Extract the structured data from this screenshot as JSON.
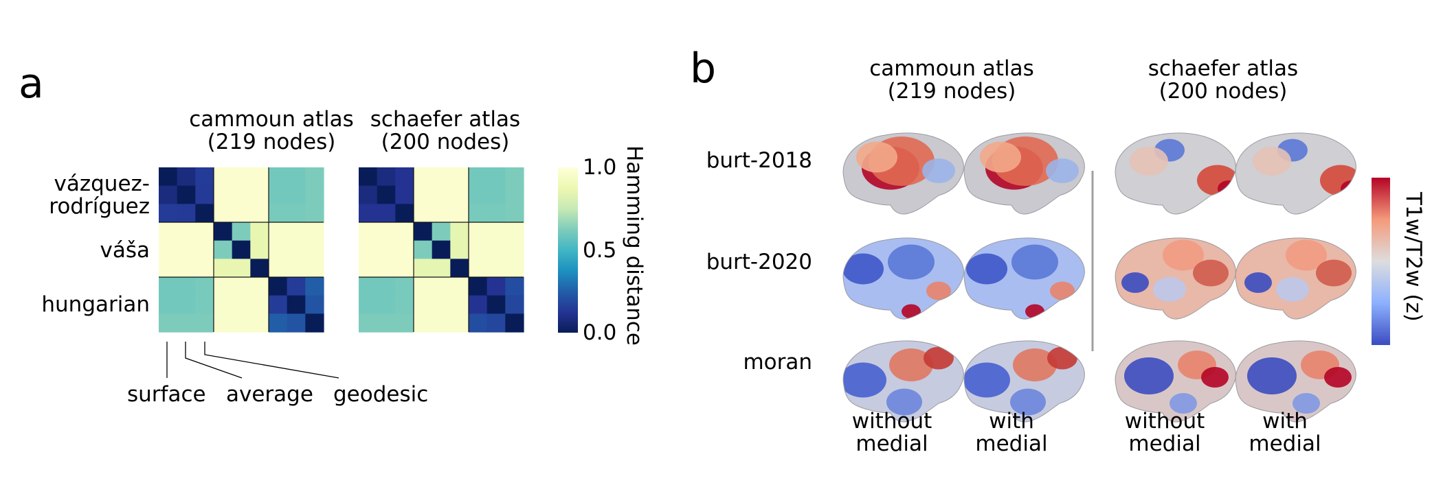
{
  "panel_a": {
    "letter": "a",
    "atlas_titles": [
      {
        "line1": "cammoun atlas",
        "line2": "(219 nodes)"
      },
      {
        "line1": "schaefer atlas",
        "line2": "(200 nodes)"
      }
    ],
    "row_labels": [
      {
        "line1": "vázquez-",
        "line2": "rodríguez"
      },
      {
        "line1": "váša",
        "line2": ""
      },
      {
        "line1": "hungarian",
        "line2": ""
      }
    ],
    "method_labels": [
      "surface",
      "average",
      "geodesic"
    ],
    "colorbar": {
      "label": "Hamming distance",
      "ticks": [
        "1.0",
        "0.5",
        "0.0"
      ],
      "cmap": "YlGnBu",
      "range": [
        0,
        1
      ]
    }
  },
  "panel_b": {
    "letter": "b",
    "atlas_titles": [
      {
        "line1": "cammoun atlas",
        "line2": "(219 nodes)"
      },
      {
        "line1": "schaefer atlas",
        "line2": "(200 nodes)"
      }
    ],
    "row_labels": [
      "burt-2018",
      "burt-2020",
      "moran"
    ],
    "column_labels": [
      {
        "line1": "without",
        "line2": "medial"
      },
      {
        "line1": "with",
        "line2": "medial"
      },
      {
        "line1": "without",
        "line2": "medial"
      },
      {
        "line1": "with",
        "line2": "medial"
      }
    ],
    "colorbar": {
      "label": "T1w/T2w (z)",
      "cmap": "coolwarm"
    }
  },
  "chart_data": [
    {
      "type": "heatmap",
      "title": "cammoun atlas (219 nodes)",
      "labels": [
        "vázquez-rodríguez surface",
        "vázquez-rodríguez average",
        "vázquez-rodríguez geodesic",
        "váša surface",
        "váša average",
        "váša geodesic",
        "hungarian surface",
        "hungarian average",
        "hungarian geodesic"
      ],
      "colorbar_label": "Hamming distance",
      "vmin": 0,
      "vmax": 1,
      "matrix": [
        [
          0.0,
          0.08,
          0.15,
          0.97,
          0.97,
          0.97,
          0.6,
          0.6,
          0.62
        ],
        [
          0.08,
          0.0,
          0.14,
          0.97,
          0.97,
          0.97,
          0.6,
          0.6,
          0.62
        ],
        [
          0.15,
          0.14,
          0.0,
          0.97,
          0.97,
          0.97,
          0.61,
          0.61,
          0.62
        ],
        [
          0.97,
          0.97,
          0.97,
          0.0,
          0.62,
          0.86,
          0.96,
          0.96,
          0.96
        ],
        [
          0.97,
          0.97,
          0.97,
          0.62,
          0.0,
          0.86,
          0.96,
          0.96,
          0.96
        ],
        [
          0.97,
          0.97,
          0.97,
          0.86,
          0.86,
          0.0,
          0.96,
          0.96,
          0.96
        ],
        [
          0.6,
          0.6,
          0.61,
          0.96,
          0.96,
          0.96,
          0.0,
          0.15,
          0.25
        ],
        [
          0.6,
          0.6,
          0.61,
          0.96,
          0.96,
          0.96,
          0.15,
          0.0,
          0.22
        ],
        [
          0.62,
          0.62,
          0.62,
          0.96,
          0.96,
          0.96,
          0.25,
          0.22,
          0.0
        ]
      ]
    },
    {
      "type": "heatmap",
      "title": "schaefer atlas (200 nodes)",
      "labels": [
        "vázquez-rodríguez surface",
        "vázquez-rodríguez average",
        "vázquez-rodríguez geodesic",
        "váša surface",
        "váša average",
        "váša geodesic",
        "hungarian surface",
        "hungarian average",
        "hungarian geodesic"
      ],
      "colorbar_label": "Hamming distance",
      "vmin": 0,
      "vmax": 1,
      "matrix": [
        [
          0.0,
          0.08,
          0.12,
          0.97,
          0.97,
          0.97,
          0.6,
          0.6,
          0.62
        ],
        [
          0.08,
          0.0,
          0.12,
          0.97,
          0.97,
          0.97,
          0.6,
          0.6,
          0.62
        ],
        [
          0.12,
          0.12,
          0.0,
          0.97,
          0.97,
          0.97,
          0.61,
          0.61,
          0.62
        ],
        [
          0.97,
          0.97,
          0.97,
          0.0,
          0.62,
          0.85,
          0.96,
          0.96,
          0.96
        ],
        [
          0.97,
          0.97,
          0.97,
          0.62,
          0.0,
          0.85,
          0.96,
          0.96,
          0.96
        ],
        [
          0.97,
          0.97,
          0.97,
          0.85,
          0.85,
          0.0,
          0.96,
          0.96,
          0.96
        ],
        [
          0.6,
          0.6,
          0.61,
          0.96,
          0.96,
          0.96,
          0.0,
          0.12,
          0.2
        ],
        [
          0.6,
          0.6,
          0.61,
          0.96,
          0.96,
          0.96,
          0.12,
          0.0,
          0.18
        ],
        [
          0.62,
          0.62,
          0.62,
          0.96,
          0.96,
          0.96,
          0.2,
          0.18,
          0.0
        ]
      ]
    }
  ]
}
